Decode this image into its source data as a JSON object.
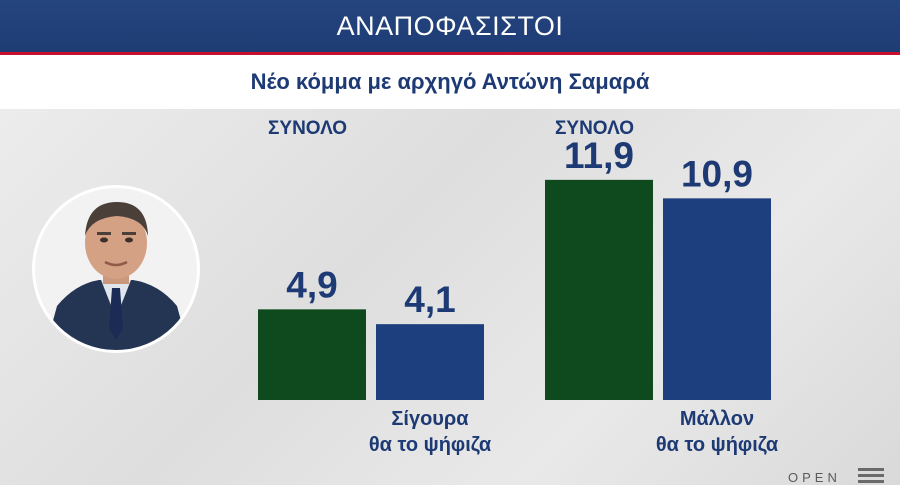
{
  "header": {
    "title": "ΑΝΑΠΟΦΑΣΙΣΤΟΙ"
  },
  "subheader": {
    "title": "Νέο κόμμα με αρχηγό Αντώνη Σαμαρά"
  },
  "colors": {
    "green": "#0e4a1d",
    "blue": "#1e3f7e",
    "text": "#1d3a74",
    "header": "#25457f"
  },
  "chart_data": {
    "type": "bar",
    "groups": [
      {
        "label": "ΣΥΝΟΛΟ",
        "bars": [
          {
            "value": 4.9,
            "label": "4,9",
            "color": "#0e4a1d"
          },
          {
            "value": 4.1,
            "label": "4,1",
            "color": "#1e3f7e"
          }
        ],
        "caption": [
          "Σίγουρα",
          "θα το ψήφιζα"
        ]
      },
      {
        "label": "ΣΥΝΟΛΟ",
        "bars": [
          {
            "value": 11.9,
            "label": "11,9",
            "color": "#0e4a1d"
          },
          {
            "value": 10.9,
            "label": "10,9",
            "color": "#1e3f7e"
          }
        ],
        "caption": [
          "Μάλλον",
          "θα το ψήφιζα"
        ]
      }
    ]
  },
  "footer": {
    "logo": "OPEN"
  }
}
